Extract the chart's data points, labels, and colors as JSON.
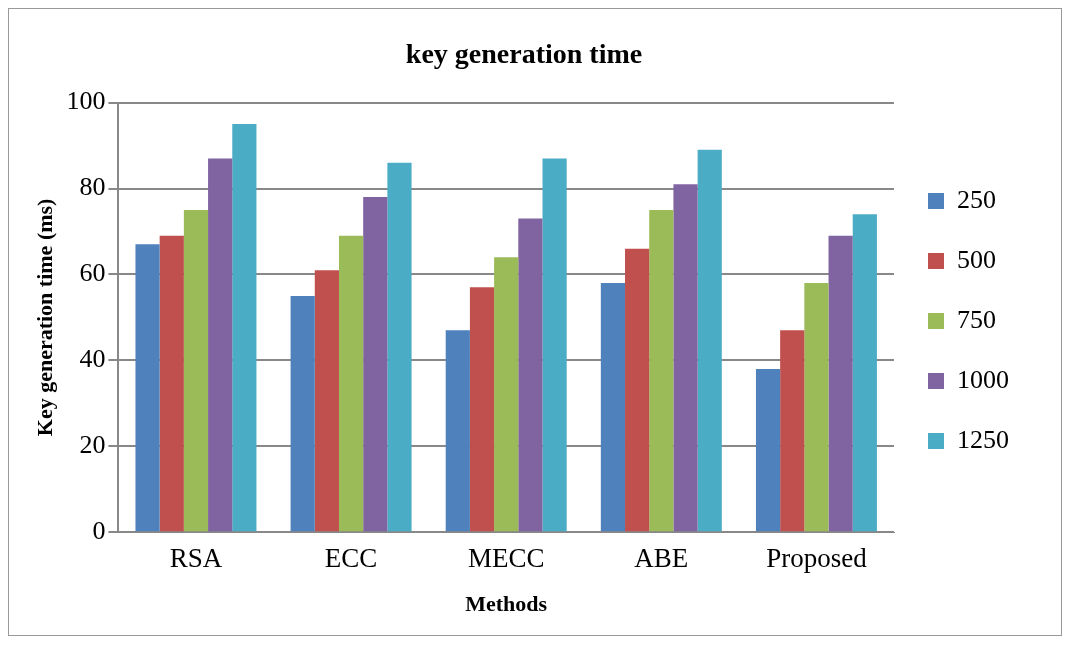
{
  "chart_data": {
    "type": "bar",
    "title": "key generation time",
    "xlabel": "Methods",
    "ylabel": "Key generation time (ms)",
    "categories": [
      "RSA",
      "ECC",
      "MECC",
      "ABE",
      "Proposed"
    ],
    "series": [
      {
        "name": "250",
        "color": "#4f81bd",
        "values": [
          67,
          55,
          47,
          58,
          38
        ]
      },
      {
        "name": "500",
        "color": "#c0504d",
        "values": [
          69,
          61,
          57,
          66,
          47
        ]
      },
      {
        "name": "750",
        "color": "#9bbb59",
        "values": [
          75,
          69,
          64,
          75,
          58
        ]
      },
      {
        "name": "1000",
        "color": "#8064a2",
        "values": [
          87,
          78,
          73,
          81,
          69
        ]
      },
      {
        "name": "1250",
        "color": "#4bacc6",
        "values": [
          95,
          86,
          87,
          89,
          74
        ]
      }
    ],
    "ylim": [
      0,
      100
    ],
    "yticks": [
      0,
      20,
      40,
      60,
      80,
      100
    ],
    "grid": "y",
    "legend": "right"
  }
}
